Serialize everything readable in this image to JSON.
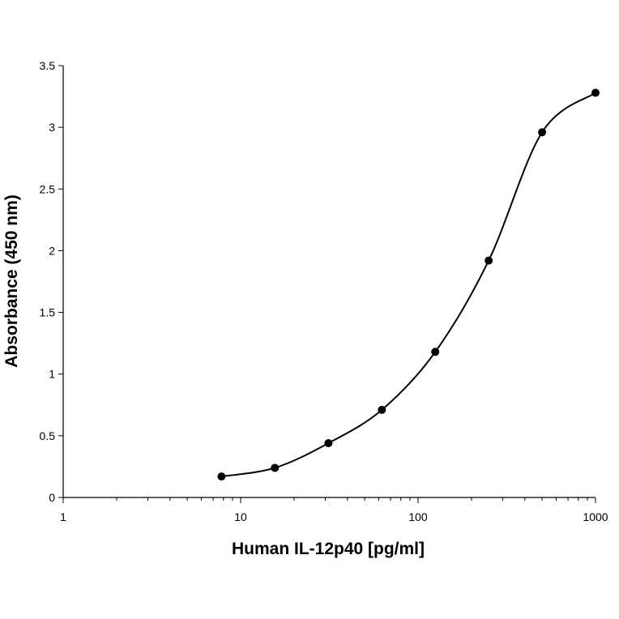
{
  "chart_data": {
    "type": "scatter",
    "title": "",
    "xlabel": "Human IL-12p40 [pg/ml]",
    "ylabel": "Absorbance (450 nm)",
    "x_scale": "log",
    "xlim": [
      1,
      1000
    ],
    "ylim": [
      0,
      3.5
    ],
    "x_ticks": [
      1,
      10,
      100,
      1000
    ],
    "x_tick_labels": [
      "1",
      "10",
      "100",
      "1000"
    ],
    "y_ticks": [
      0,
      0.5,
      1,
      1.5,
      2,
      2.5,
      3,
      3.5
    ],
    "y_tick_labels": [
      "0",
      "0.5",
      "1",
      "1.5",
      "2",
      "2.5",
      "3",
      "3.5"
    ],
    "grid": false,
    "legend": "none",
    "smooth_line": true,
    "series": [
      {
        "x": [
          7.8,
          15.6,
          31.25,
          62.5,
          125,
          250,
          500,
          1000
        ],
        "y": [
          0.17,
          0.24,
          0.44,
          0.71,
          1.18,
          1.92,
          2.96,
          3.28
        ]
      }
    ],
    "colors": {
      "line": "#000000",
      "marker": "#000000"
    }
  }
}
